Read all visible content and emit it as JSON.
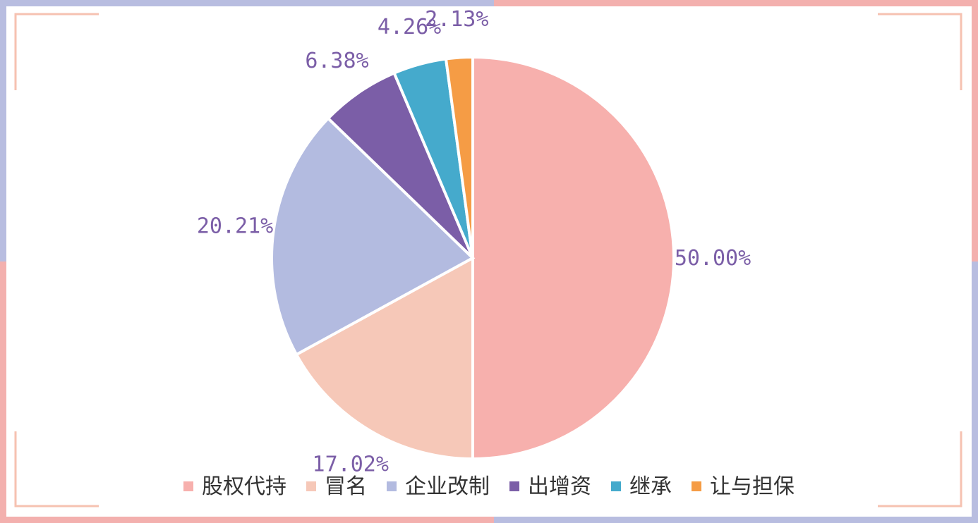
{
  "chart_data": {
    "type": "pie",
    "start_angle_deg": 0,
    "direction": "clockwise",
    "slices": [
      {
        "label": "股权代持",
        "value": 50.0,
        "display": "50.00%",
        "color": "#f7b0ad"
      },
      {
        "label": "冒名",
        "value": 17.02,
        "display": "17.02%",
        "color": "#f6c8b8"
      },
      {
        "label": "企业改制",
        "value": 20.21,
        "display": "20.21%",
        "color": "#b3bbe0"
      },
      {
        "label": "出增资",
        "value": 6.38,
        "display": "6.38%",
        "color": "#7b5ea7"
      },
      {
        "label": "继承",
        "value": 4.26,
        "display": "4.26%",
        "color": "#45aacc"
      },
      {
        "label": "让与担保",
        "value": 2.13,
        "display": "2.13%",
        "color": "#f59c45"
      }
    ],
    "legend": {
      "position": "bottom"
    }
  },
  "colors": {
    "label_text": "#7b5ea7",
    "frame_blue": "#aeb4dc",
    "frame_pink": "#f3b0ae",
    "frame_peach": "#f6c2b1"
  }
}
